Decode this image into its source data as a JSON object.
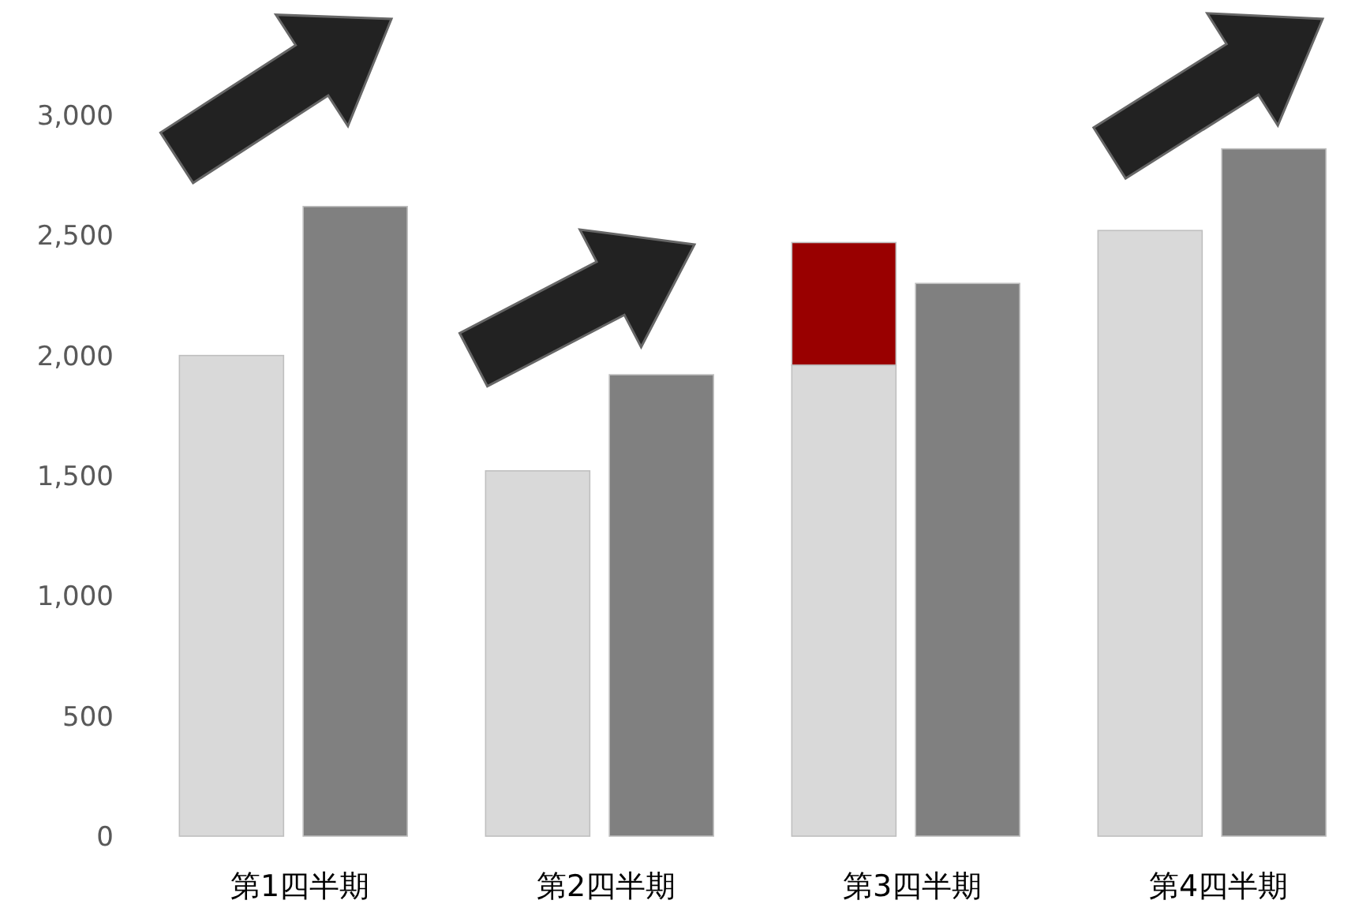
{
  "chart_data": {
    "type": "bar",
    "categories": [
      "第1四半期",
      "第2四半期",
      "第3四半期",
      "第4四半期"
    ],
    "series": [
      {
        "color": "#d9d9d9",
        "values": [
          2000,
          1520,
          1960,
          2520
        ]
      },
      {
        "color": "#990000",
        "values": [
          null,
          null,
          510,
          null
        ],
        "base": [
          null,
          null,
          1960,
          null
        ]
      },
      {
        "color": "#808080",
        "values": [
          2620,
          1920,
          2300,
          2860
        ]
      }
    ],
    "ylim": [
      0,
      3000
    ],
    "yticks": [
      {
        "value": 0,
        "label": "0"
      },
      {
        "value": 500,
        "label": "500"
      },
      {
        "value": 1000,
        "label": "1,000"
      },
      {
        "value": 1500,
        "label": "1,500"
      },
      {
        "value": 2000,
        "label": "2,000"
      },
      {
        "value": 2500,
        "label": "2,500"
      },
      {
        "value": 3000,
        "label": "3,000"
      }
    ]
  }
}
